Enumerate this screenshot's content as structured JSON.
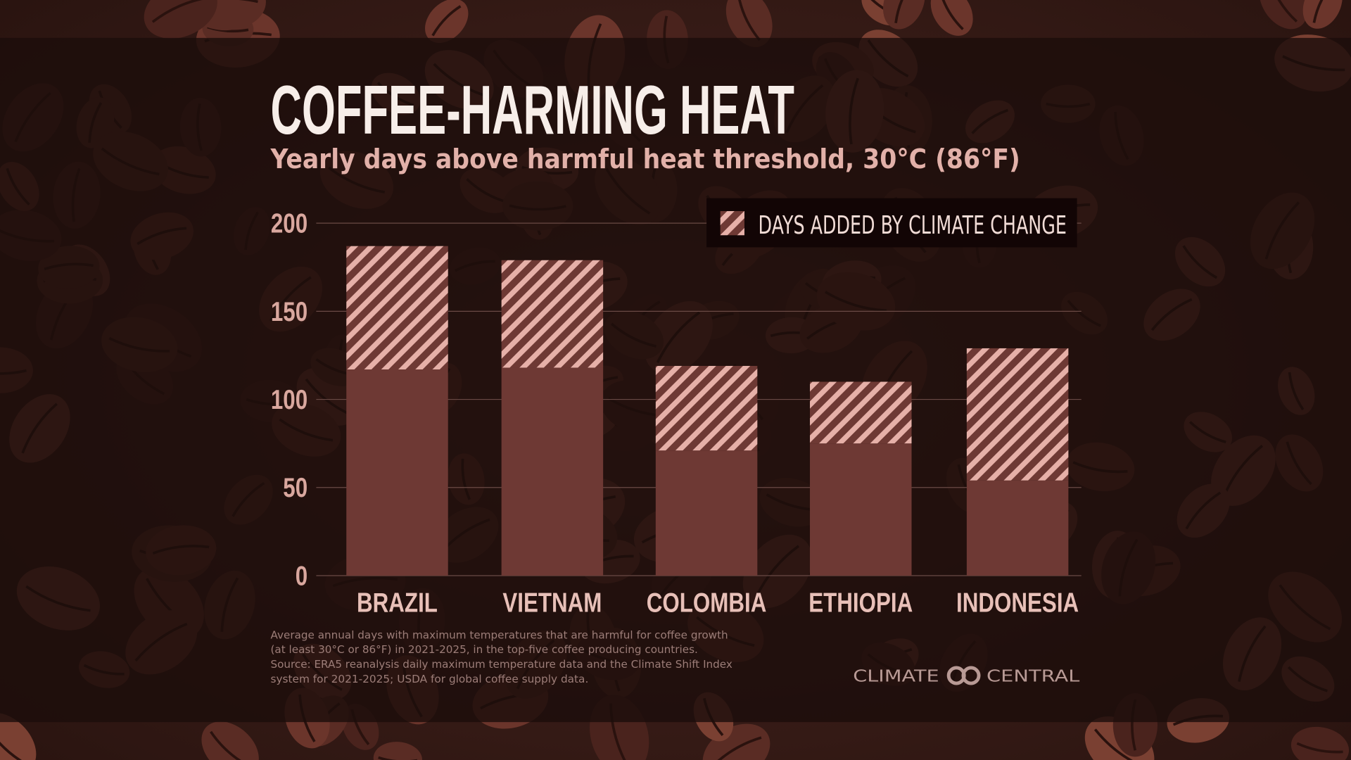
{
  "chart_data": {
    "type": "stacked-bar",
    "title": "COFFEE-HARMING HEAT",
    "subtitle": "Yearly days above harmful heat threshold, 30°C (86°F)",
    "categories": [
      "BRAZIL",
      "VIETNAM",
      "COLOMBIA",
      "ETHIOPIA",
      "INDONESIA"
    ],
    "series": [
      {
        "color": "#6e3934",
        "values": [
          117,
          118,
          71,
          75,
          54
        ]
      },
      {
        "name": "DAYS ADDED BY CLIMATE CHANGE",
        "color": "#e6b0a8",
        "values": [
          70,
          61,
          48,
          35,
          75
        ]
      }
    ],
    "ylim": [
      0,
      200
    ],
    "yticks": [
      0,
      50,
      100,
      150,
      200
    ],
    "grid": true,
    "legend": "top-right",
    "footnote": [
      "Average annual days with maximum temperatures that are harmful for coffee growth",
      "(at least 30°C or 86°F) in 2021-2025, in the top-five coffee producing countries.",
      "Source: ERA5 reanalysis daily maximum temperature data and the Climate Shift Index",
      "system for 2021-2025; USDA for global coffee supply data."
    ],
    "logo": {
      "left": "CLIMATE",
      "right": "CENTRAL"
    }
  }
}
